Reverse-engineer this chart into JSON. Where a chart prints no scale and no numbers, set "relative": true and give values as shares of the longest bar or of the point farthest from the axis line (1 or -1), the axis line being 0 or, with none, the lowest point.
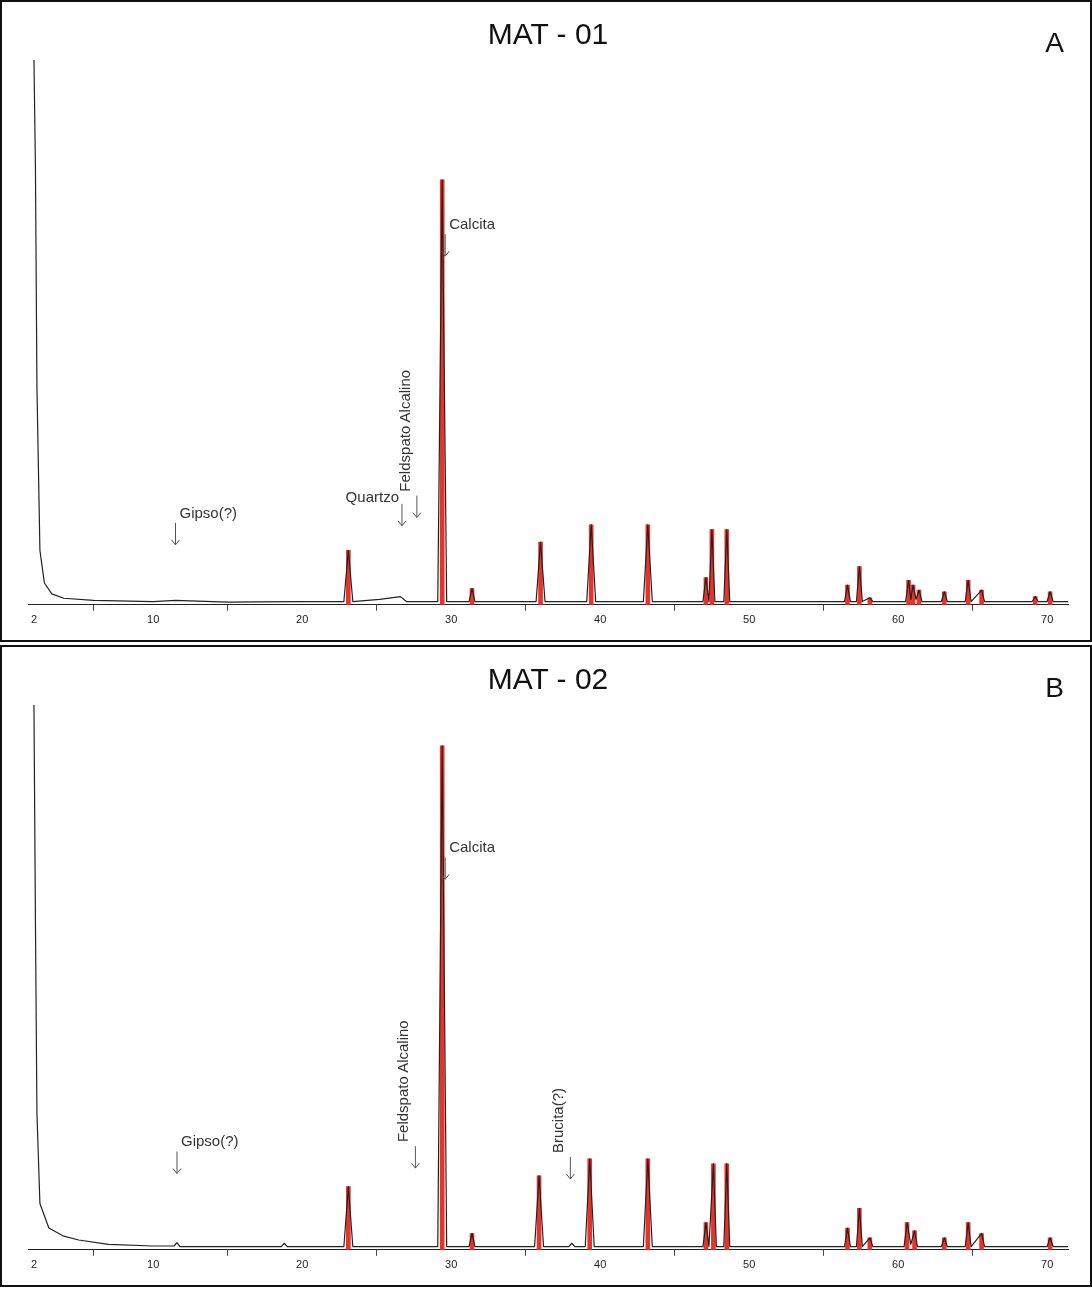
{
  "chart_data": [
    {
      "type": "line",
      "title": "MAT - 01",
      "relative": true,
      "xlim": [
        1.6,
        71.4
      ],
      "xticks": [
        2,
        10,
        20,
        30,
        40,
        50,
        60,
        70
      ],
      "grid": false,
      "legend": false,
      "marker": "none",
      "series": [
        {
          "color": "#222222",
          "x": [
            2.0,
            2.1,
            2.2,
            2.4,
            2.7,
            3.2,
            4,
            6,
            10,
            11.5,
            15,
            20,
            22.8,
            23.1,
            23.4,
            25.2,
            26.6,
            27.0,
            29.1,
            29.4,
            29.7,
            31.2,
            31.4,
            31.6,
            35.7,
            36.0,
            36.3,
            39.1,
            39.4,
            39.7,
            42.9,
            43.2,
            43.5,
            46.9,
            47.1,
            47.3,
            47.5,
            47.7,
            48.3,
            48.5,
            48.7,
            56.4,
            56.6,
            56.8,
            57.2,
            57.4,
            57.6,
            58.1,
            58.3,
            60.5,
            60.7,
            60.85,
            61.0,
            61.2,
            61.4,
            61.6,
            62.9,
            63.1,
            63.3,
            64.5,
            64.7,
            64.9,
            65.6,
            65.8,
            69.0,
            69.2,
            69.4,
            70.0,
            70.2,
            70.4,
            71.4
          ],
          "values": [
            1.0,
            0.8,
            0.4,
            0.1,
            0.04,
            0.02,
            0.012,
            0.008,
            0.006,
            0.008,
            0.005,
            0.006,
            0.006,
            0.1,
            0.006,
            0.01,
            0.015,
            0.006,
            0.006,
            0.78,
            0.006,
            0.006,
            0.03,
            0.006,
            0.006,
            0.115,
            0.006,
            0.006,
            0.147,
            0.006,
            0.006,
            0.147,
            0.006,
            0.006,
            0.05,
            0.006,
            0.138,
            0.006,
            0.006,
            0.138,
            0.006,
            0.006,
            0.036,
            0.006,
            0.006,
            0.07,
            0.006,
            0.013,
            0.006,
            0.006,
            0.045,
            0.01,
            0.036,
            0.01,
            0.027,
            0.006,
            0.006,
            0.024,
            0.006,
            0.006,
            0.045,
            0.006,
            0.027,
            0.006,
            0.006,
            0.015,
            0.006,
            0.006,
            0.024,
            0.006,
            0.006
          ]
        },
        {
          "type": "bar",
          "color": "#e8332a",
          "x": [
            23.1,
            29.4,
            31.4,
            36.0,
            39.4,
            43.2,
            47.1,
            47.5,
            48.5,
            56.6,
            57.4,
            58.1,
            60.7,
            61.0,
            61.4,
            63.1,
            64.7,
            65.6,
            69.2,
            70.2
          ],
          "values": [
            0.1,
            0.78,
            0.03,
            0.115,
            0.147,
            0.147,
            0.05,
            0.138,
            0.138,
            0.036,
            0.07,
            0.013,
            0.045,
            0.036,
            0.027,
            0.024,
            0.045,
            0.027,
            0.015,
            0.024
          ]
        }
      ],
      "annotations": [
        "A",
        "Calcita",
        "Feldspato Alcalino",
        "Quartzo",
        "Gipso(?)"
      ]
    },
    {
      "type": "line",
      "title": "MAT - 02",
      "relative": true,
      "xlim": [
        1.6,
        71.4
      ],
      "xticks": [
        2,
        10,
        20,
        30,
        40,
        50,
        60,
        70
      ],
      "grid": false,
      "legend": false,
      "marker": "none",
      "series": [
        {
          "color": "#222222",
          "x": [
            2.0,
            2.1,
            2.2,
            2.4,
            3,
            4,
            5,
            7,
            10,
            11.4,
            11.6,
            11.8,
            18.6,
            18.8,
            19,
            22.8,
            23.1,
            23.4,
            29.1,
            29.4,
            29.7,
            31.2,
            31.4,
            31.6,
            35.6,
            35.9,
            36.2,
            37.9,
            38.1,
            38.3,
            39.0,
            39.3,
            39.6,
            42.9,
            43.2,
            43.5,
            46.9,
            47.1,
            47.3,
            47.6,
            47.8,
            48.3,
            48.5,
            48.7,
            56.4,
            56.6,
            56.8,
            57.2,
            57.4,
            57.6,
            58.1,
            58.3,
            60.4,
            60.6,
            60.85,
            61.1,
            61.3,
            62.9,
            63.1,
            63.3,
            64.5,
            64.7,
            64.9,
            65.6,
            65.8,
            70.0,
            70.2,
            70.4,
            71.4
          ],
          "values": [
            1.0,
            0.6,
            0.25,
            0.085,
            0.04,
            0.025,
            0.018,
            0.01,
            0.007,
            0.007,
            0.013,
            0.006,
            0.006,
            0.012,
            0.006,
            0.006,
            0.116,
            0.006,
            0.006,
            0.925,
            0.006,
            0.006,
            0.03,
            0.006,
            0.006,
            0.136,
            0.006,
            0.006,
            0.012,
            0.006,
            0.006,
            0.167,
            0.006,
            0.006,
            0.167,
            0.006,
            0.006,
            0.05,
            0.006,
            0.158,
            0.006,
            0.006,
            0.158,
            0.006,
            0.006,
            0.04,
            0.006,
            0.006,
            0.076,
            0.006,
            0.022,
            0.006,
            0.006,
            0.05,
            0.01,
            0.035,
            0.006,
            0.006,
            0.022,
            0.006,
            0.006,
            0.05,
            0.006,
            0.03,
            0.006,
            0.006,
            0.022,
            0.006,
            0.006
          ]
        },
        {
          "type": "bar",
          "color": "#e8332a",
          "x": [
            23.1,
            29.4,
            31.4,
            35.9,
            39.3,
            43.2,
            47.1,
            47.6,
            48.5,
            56.6,
            57.4,
            58.1,
            60.6,
            61.1,
            63.1,
            64.7,
            65.6,
            70.2
          ],
          "values": [
            0.116,
            0.925,
            0.03,
            0.136,
            0.167,
            0.167,
            0.05,
            0.158,
            0.158,
            0.04,
            0.076,
            0.022,
            0.05,
            0.035,
            0.022,
            0.05,
            0.03,
            0.022
          ]
        }
      ],
      "annotations": [
        "B",
        "Calcita",
        "Feldspato Alcalino",
        "Brucita(?)",
        "Gipso(?)"
      ]
    }
  ]
}
